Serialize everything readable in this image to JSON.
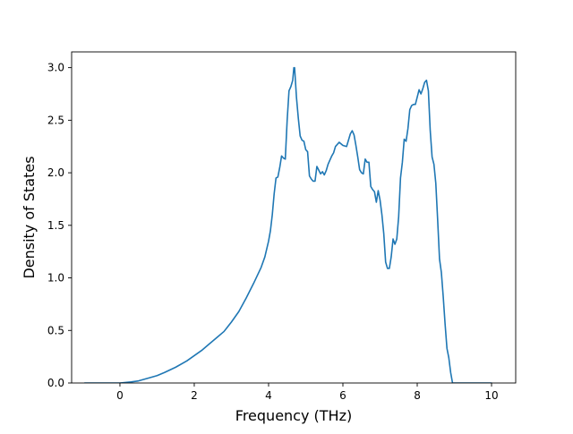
{
  "chart_data": {
    "type": "line",
    "title": "",
    "xlabel": "Frequency (THz)",
    "ylabel": "Density of States",
    "xlim": [
      -1.3,
      10.65
    ],
    "ylim": [
      0.0,
      3.15
    ],
    "xticks": [
      0,
      2,
      4,
      6,
      8,
      10
    ],
    "yticks": [
      0.0,
      0.5,
      1.0,
      1.5,
      2.0,
      2.5,
      3.0
    ],
    "xtick_labels": [
      "0",
      "2",
      "4",
      "6",
      "8",
      "10"
    ],
    "ytick_labels": [
      "0.0",
      "0.5",
      "1.0",
      "1.5",
      "2.0",
      "2.5",
      "3.0"
    ],
    "grid": false,
    "line_color": "#1f77b4",
    "series": [
      {
        "x": [
          -0.95,
          -0.5,
          0.0,
          0.3,
          0.5,
          0.8,
          1.0,
          1.2,
          1.5,
          1.8,
          2.0,
          2.2,
          2.4,
          2.6,
          2.8,
          3.0,
          3.2,
          3.4,
          3.6,
          3.8,
          3.9,
          4.0,
          4.05,
          4.1,
          4.15,
          4.2,
          4.25,
          4.3,
          4.35,
          4.4,
          4.45,
          4.5,
          4.55,
          4.6,
          4.65,
          4.68,
          4.7,
          4.75,
          4.8,
          4.85,
          4.9,
          4.95,
          5.0,
          5.05,
          5.1,
          5.15,
          5.2,
          5.25,
          5.3,
          5.4,
          5.45,
          5.5,
          5.55,
          5.6,
          5.65,
          5.7,
          5.75,
          5.8,
          5.9,
          6.0,
          6.1,
          6.2,
          6.25,
          6.3,
          6.35,
          6.4,
          6.45,
          6.5,
          6.55,
          6.6,
          6.65,
          6.7,
          6.75,
          6.8,
          6.85,
          6.9,
          6.95,
          7.0,
          7.05,
          7.1,
          7.15,
          7.2,
          7.25,
          7.3,
          7.35,
          7.4,
          7.45,
          7.5,
          7.55,
          7.6,
          7.65,
          7.7,
          7.75,
          7.8,
          7.85,
          7.9,
          7.95,
          8.0,
          8.05,
          8.1,
          8.15,
          8.2,
          8.25,
          8.3,
          8.35,
          8.4,
          8.45,
          8.5,
          8.55,
          8.6,
          8.65,
          8.7,
          8.75,
          8.8,
          8.85,
          8.9,
          8.95,
          9.0,
          9.05,
          9.1,
          9.15,
          9.2,
          9.5,
          10.0
        ],
        "y": [
          0.0,
          0.0,
          0.0,
          0.01,
          0.02,
          0.05,
          0.07,
          0.1,
          0.15,
          0.21,
          0.26,
          0.31,
          0.37,
          0.43,
          0.49,
          0.58,
          0.68,
          0.81,
          0.95,
          1.1,
          1.2,
          1.35,
          1.45,
          1.6,
          1.8,
          1.95,
          1.96,
          2.05,
          2.16,
          2.14,
          2.13,
          2.5,
          2.78,
          2.82,
          2.88,
          3.0,
          3.0,
          2.72,
          2.52,
          2.35,
          2.31,
          2.3,
          2.22,
          2.2,
          1.97,
          1.94,
          1.92,
          1.92,
          2.06,
          1.99,
          2.01,
          1.98,
          2.02,
          2.08,
          2.12,
          2.16,
          2.19,
          2.25,
          2.29,
          2.26,
          2.25,
          2.37,
          2.4,
          2.36,
          2.26,
          2.15,
          2.03,
          2.0,
          1.99,
          2.13,
          2.1,
          2.1,
          1.87,
          1.84,
          1.82,
          1.72,
          1.83,
          1.74,
          1.6,
          1.42,
          1.15,
          1.09,
          1.09,
          1.2,
          1.37,
          1.32,
          1.37,
          1.58,
          1.95,
          2.1,
          2.32,
          2.3,
          2.42,
          2.6,
          2.64,
          2.65,
          2.65,
          2.72,
          2.79,
          2.75,
          2.8,
          2.86,
          2.88,
          2.78,
          2.4,
          2.15,
          2.08,
          1.9,
          1.55,
          1.18,
          1.05,
          0.82,
          0.56,
          0.33,
          0.24,
          0.1,
          0.0,
          0.0,
          0.0,
          0.0,
          0.0,
          0.0,
          0.0,
          0.0
        ]
      }
    ]
  }
}
